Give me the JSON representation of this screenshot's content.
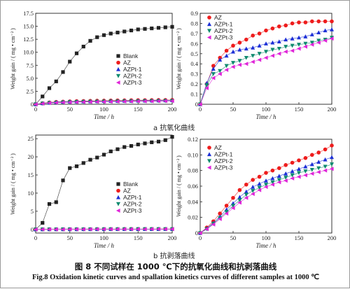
{
  "sub_labels": {
    "a": "a  抗氧化曲线",
    "b": "b  抗剥落曲线"
  },
  "caption": {
    "cn": "图 8    不同试样在 1000 ℃下的抗氧化曲线和抗剥落曲线",
    "en": "Fig.8 Oxidation kinetic curves and spallation kinetics curves of different samples at 1000 ℃"
  },
  "styles": {
    "Blank": {
      "color": "#222222",
      "marker": "square"
    },
    "AZ": {
      "color": "#ee1c1c",
      "marker": "circle"
    },
    "AZPt-1": {
      "color": "#1c2fd6",
      "marker": "triangle-up"
    },
    "AZPt-2": {
      "color": "#0e8a6e",
      "marker": "triangle-down"
    },
    "AZPt-3": {
      "color": "#e024d8",
      "marker": "triangle-left"
    }
  },
  "chart_data": [
    {
      "id": "a-left",
      "type": "line",
      "xlabel": "Time / h",
      "ylabel": "Weight gain / ( mg • cm⁻² )",
      "xlim": [
        0,
        200
      ],
      "ylim": [
        0,
        17.5
      ],
      "xticks": [
        0,
        50,
        100,
        150,
        200
      ],
      "yticks": [
        0,
        2.5,
        5.0,
        7.5,
        10.0,
        12.5,
        15.0,
        17.5
      ],
      "ytick_labels": [
        "0",
        "2.5",
        "5.0",
        "7.5",
        "10.0",
        "12.5",
        "15.0",
        "17.5"
      ],
      "legend_position": "center-right",
      "x": [
        0,
        10,
        20,
        30,
        40,
        50,
        60,
        70,
        80,
        90,
        100,
        110,
        120,
        130,
        140,
        150,
        160,
        170,
        180,
        190,
        200
      ],
      "series": [
        {
          "name": "Blank",
          "values": [
            0,
            1.5,
            3.1,
            4.4,
            6.2,
            8.2,
            9.8,
            11.1,
            12.2,
            12.9,
            13.3,
            13.6,
            13.8,
            14.0,
            14.2,
            14.4,
            14.5,
            14.6,
            14.7,
            14.8,
            14.9
          ]
        },
        {
          "name": "AZ",
          "values": [
            0,
            0.2,
            0.35,
            0.45,
            0.5,
            0.55,
            0.6,
            0.62,
            0.65,
            0.68,
            0.7,
            0.72,
            0.74,
            0.75,
            0.77,
            0.78,
            0.79,
            0.8,
            0.81,
            0.82,
            0.83
          ]
        },
        {
          "name": "AZPt-1",
          "values": [
            0,
            0.18,
            0.3,
            0.4,
            0.45,
            0.5,
            0.52,
            0.54,
            0.56,
            0.58,
            0.6,
            0.62,
            0.63,
            0.65,
            0.66,
            0.68,
            0.69,
            0.7,
            0.72,
            0.73,
            0.75
          ]
        },
        {
          "name": "AZPt-2",
          "values": [
            0,
            0.15,
            0.25,
            0.32,
            0.38,
            0.42,
            0.45,
            0.47,
            0.49,
            0.51,
            0.53,
            0.55,
            0.56,
            0.58,
            0.59,
            0.6,
            0.61,
            0.62,
            0.63,
            0.64,
            0.65
          ]
        },
        {
          "name": "AZPt-3",
          "values": [
            0,
            0.14,
            0.24,
            0.3,
            0.35,
            0.38,
            0.41,
            0.43,
            0.45,
            0.47,
            0.49,
            0.51,
            0.52,
            0.54,
            0.55,
            0.57,
            0.58,
            0.59,
            0.6,
            0.62,
            0.63
          ]
        }
      ]
    },
    {
      "id": "a-right",
      "type": "line",
      "xlabel": "Time / h",
      "ylabel": "Weight gain / ( mg • cm⁻² )",
      "xlim": [
        0,
        200
      ],
      "ylim": [
        0,
        0.9
      ],
      "xticks": [
        0,
        50,
        100,
        150,
        200
      ],
      "yticks": [
        0,
        0.1,
        0.2,
        0.3,
        0.4,
        0.5,
        0.6,
        0.7,
        0.8,
        0.9
      ],
      "ytick_labels": [
        "0",
        "0.1",
        "0.2",
        "0.3",
        "0.4",
        "0.5",
        "0.6",
        "0.7",
        "0.8",
        "0.9"
      ],
      "legend_position": "top-left",
      "x": [
        0,
        10,
        20,
        30,
        40,
        50,
        60,
        70,
        80,
        90,
        100,
        110,
        120,
        130,
        140,
        150,
        160,
        170,
        180,
        190,
        200
      ],
      "series": [
        {
          "name": "AZ",
          "values": [
            0,
            0.2,
            0.38,
            0.46,
            0.53,
            0.58,
            0.61,
            0.64,
            0.68,
            0.7,
            0.73,
            0.75,
            0.77,
            0.78,
            0.8,
            0.81,
            0.81,
            0.82,
            0.82,
            0.82,
            0.82
          ]
        },
        {
          "name": "AZPt-1",
          "values": [
            0,
            0.21,
            0.35,
            0.44,
            0.48,
            0.52,
            0.54,
            0.55,
            0.56,
            0.58,
            0.6,
            0.61,
            0.62,
            0.64,
            0.65,
            0.66,
            0.67,
            0.69,
            0.71,
            0.73,
            0.74
          ]
        },
        {
          "name": "AZPt-2",
          "values": [
            0,
            0.19,
            0.3,
            0.33,
            0.38,
            0.41,
            0.43,
            0.46,
            0.48,
            0.5,
            0.52,
            0.54,
            0.55,
            0.57,
            0.58,
            0.59,
            0.6,
            0.61,
            0.63,
            0.64,
            0.66
          ]
        },
        {
          "name": "AZPt-3",
          "values": [
            0,
            0.16,
            0.26,
            0.3,
            0.34,
            0.37,
            0.39,
            0.4,
            0.42,
            0.44,
            0.46,
            0.48,
            0.5,
            0.52,
            0.53,
            0.55,
            0.57,
            0.59,
            0.61,
            0.63,
            0.65
          ]
        }
      ]
    },
    {
      "id": "b-left",
      "type": "line",
      "xlabel": "Time / h",
      "ylabel": "Weight gain / ( mg • cm⁻² )",
      "xlim": [
        0,
        200
      ],
      "ylim": [
        -1,
        26
      ],
      "xticks": [
        0,
        50,
        100,
        150,
        200
      ],
      "yticks": [
        0,
        5,
        10,
        15,
        20,
        25
      ],
      "ytick_labels": [
        "0",
        "5",
        "10",
        "15",
        "20",
        "25"
      ],
      "legend_position": "center-right",
      "x": [
        0,
        10,
        20,
        30,
        40,
        50,
        60,
        70,
        80,
        90,
        100,
        110,
        120,
        130,
        140,
        150,
        160,
        170,
        180,
        190,
        200
      ],
      "series": [
        {
          "name": "Blank",
          "values": [
            0,
            1.8,
            7.0,
            7.5,
            13.5,
            16.9,
            17.4,
            18.3,
            19.2,
            19.8,
            20.6,
            21.5,
            22.1,
            22.7,
            23.0,
            23.4,
            23.7,
            24.0,
            24.2,
            24.6,
            25.5
          ]
        },
        {
          "name": "AZ",
          "values": [
            0,
            0.01,
            0.02,
            0.02,
            0.03,
            0.04,
            0.05,
            0.05,
            0.06,
            0.07,
            0.07,
            0.08,
            0.08,
            0.09,
            0.09,
            0.1,
            0.1,
            0.1,
            0.11,
            0.11,
            0.11
          ]
        },
        {
          "name": "AZPt-1",
          "values": [
            0,
            0.01,
            0.02,
            0.02,
            0.03,
            0.04,
            0.04,
            0.05,
            0.05,
            0.06,
            0.06,
            0.07,
            0.07,
            0.08,
            0.08,
            0.08,
            0.09,
            0.09,
            0.09,
            0.1,
            0.1
          ]
        },
        {
          "name": "AZPt-2",
          "values": [
            0,
            0.01,
            0.01,
            0.02,
            0.03,
            0.03,
            0.04,
            0.04,
            0.05,
            0.05,
            0.06,
            0.06,
            0.07,
            0.07,
            0.07,
            0.08,
            0.08,
            0.08,
            0.09,
            0.09,
            0.09
          ]
        },
        {
          "name": "AZPt-3",
          "values": [
            0,
            0.01,
            0.01,
            0.02,
            0.02,
            0.03,
            0.03,
            0.04,
            0.04,
            0.05,
            0.05,
            0.06,
            0.06,
            0.06,
            0.07,
            0.07,
            0.07,
            0.08,
            0.08,
            0.08,
            0.08
          ]
        }
      ]
    },
    {
      "id": "b-right",
      "type": "line",
      "xlabel": "Time / h",
      "ylabel": "Weight gain / ( mg • cm⁻² )",
      "xlim": [
        0,
        200
      ],
      "ylim": [
        0,
        0.12
      ],
      "xticks": [
        0,
        50,
        100,
        150,
        200
      ],
      "yticks": [
        0,
        0.02,
        0.04,
        0.06,
        0.08,
        0.1,
        0.12
      ],
      "ytick_labels": [
        "0",
        "0.02",
        "0.04",
        "0.06",
        "0.08",
        "0.10",
        "0.12"
      ],
      "legend_position": "top-left",
      "x": [
        0,
        10,
        20,
        30,
        40,
        50,
        60,
        70,
        80,
        90,
        100,
        110,
        120,
        130,
        140,
        150,
        160,
        170,
        180,
        190,
        200
      ],
      "series": [
        {
          "name": "AZ",
          "values": [
            0,
            0.007,
            0.015,
            0.025,
            0.035,
            0.045,
            0.055,
            0.062,
            0.068,
            0.072,
            0.077,
            0.08,
            0.083,
            0.087,
            0.09,
            0.093,
            0.096,
            0.1,
            0.103,
            0.107,
            0.112
          ]
        },
        {
          "name": "AZPt-1",
          "values": [
            0,
            0.006,
            0.013,
            0.021,
            0.03,
            0.038,
            0.046,
            0.053,
            0.059,
            0.063,
            0.067,
            0.07,
            0.073,
            0.076,
            0.079,
            0.082,
            0.085,
            0.088,
            0.091,
            0.094,
            0.097
          ]
        },
        {
          "name": "AZPt-2",
          "values": [
            0,
            0.005,
            0.012,
            0.019,
            0.027,
            0.035,
            0.042,
            0.049,
            0.054,
            0.058,
            0.062,
            0.065,
            0.068,
            0.071,
            0.074,
            0.077,
            0.079,
            0.081,
            0.083,
            0.085,
            0.088
          ]
        },
        {
          "name": "AZPt-3",
          "values": [
            0,
            0.005,
            0.011,
            0.018,
            0.025,
            0.032,
            0.039,
            0.045,
            0.05,
            0.055,
            0.059,
            0.062,
            0.065,
            0.067,
            0.07,
            0.072,
            0.074,
            0.076,
            0.078,
            0.08,
            0.082
          ]
        }
      ]
    }
  ]
}
